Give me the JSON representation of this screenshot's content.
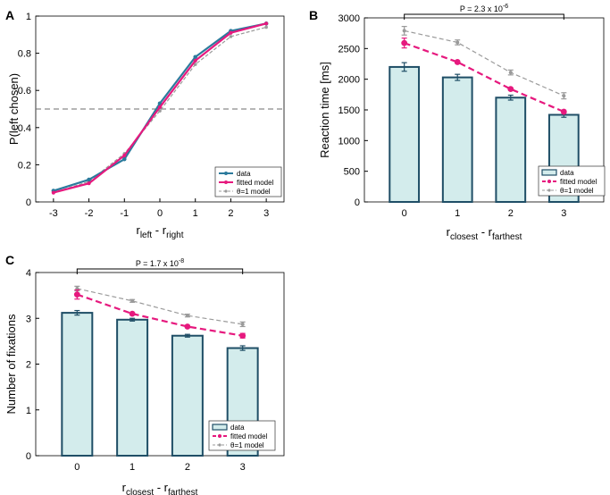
{
  "colors": {
    "data_line": "#2b7a9c",
    "fitted": "#e6197e",
    "theta1": "#9a9a9a",
    "bar_fill": "#d3ecec",
    "bar_edge": "#1f4e66",
    "dashed_ref": "#6e6e6e"
  },
  "chart_data": [
    {
      "panel": "A",
      "type": "line",
      "xlabel_main": "r",
      "xlabel_sub1": "left",
      "xlabel_mid": " - r",
      "xlabel_sub2": "right",
      "ylabel": "P(left chosen)",
      "x": [
        -3,
        -2,
        -1,
        0,
        1,
        2,
        3
      ],
      "xlim": [
        -3.5,
        3.5
      ],
      "ylim": [
        0,
        1
      ],
      "xticks": [
        "-3",
        "-2",
        "-1",
        "0",
        "1",
        "2",
        "3"
      ],
      "yticks": [
        "0",
        "0.2",
        "0.4",
        "0.6",
        "0.8",
        "1"
      ],
      "reference_line_y": 0.5,
      "legend": [
        "data",
        "fitted model",
        "θ=1 model"
      ],
      "series": [
        {
          "name": "data",
          "values": [
            0.06,
            0.12,
            0.23,
            0.53,
            0.78,
            0.92,
            0.96
          ]
        },
        {
          "name": "fitted model",
          "values": [
            0.05,
            0.1,
            0.25,
            0.51,
            0.76,
            0.91,
            0.96
          ]
        },
        {
          "name": "θ=1 model",
          "values": [
            0.05,
            0.11,
            0.26,
            0.49,
            0.74,
            0.89,
            0.94
          ]
        }
      ]
    },
    {
      "panel": "B",
      "type": "bar",
      "xlabel_main": "r",
      "xlabel_sub1": "closest",
      "xlabel_mid": " - r",
      "xlabel_sub2": "farthest",
      "ylabel": "Reaction time [ms]",
      "categories": [
        "0",
        "1",
        "2",
        "3"
      ],
      "ylim": [
        0,
        3000
      ],
      "yticks": [
        "0",
        "500",
        "1000",
        "1500",
        "2000",
        "2500",
        "3000"
      ],
      "significance_base": "P = 2.3 x 10",
      "significance_exp": "-6",
      "legend": [
        "data",
        "fitted model",
        "θ=1 model"
      ],
      "series": [
        {
          "name": "data",
          "values": [
            2200,
            2030,
            1700,
            1420
          ],
          "errors": [
            70,
            50,
            40,
            40
          ]
        },
        {
          "name": "fitted model",
          "values": [
            2590,
            2280,
            1840,
            1470
          ],
          "errors": [
            80,
            0,
            0,
            0
          ]
        },
        {
          "name": "θ=1 model",
          "values": [
            2790,
            2600,
            2110,
            1730
          ],
          "errors": [
            70,
            40,
            40,
            50
          ]
        }
      ]
    },
    {
      "panel": "C",
      "type": "bar",
      "xlabel_main": "r",
      "xlabel_sub1": "closest",
      "xlabel_mid": " - r",
      "xlabel_sub2": "farthest",
      "ylabel": "Number of fixations",
      "categories": [
        "0",
        "1",
        "2",
        "3"
      ],
      "ylim": [
        0,
        4
      ],
      "yticks": [
        "0",
        "1",
        "2",
        "3",
        "4"
      ],
      "significance_base": "P = 1.7 x 10",
      "significance_exp": "-8",
      "legend": [
        "data",
        "fitted model",
        "θ=1 model"
      ],
      "series": [
        {
          "name": "data",
          "values": [
            3.12,
            2.97,
            2.62,
            2.35
          ],
          "errors": [
            0.05,
            0.03,
            0.03,
            0.05
          ]
        },
        {
          "name": "fitted model",
          "values": [
            3.52,
            3.1,
            2.82,
            2.62
          ],
          "errors": [
            0.1,
            0,
            0,
            0.05
          ]
        },
        {
          "name": "θ=1 model",
          "values": [
            3.65,
            3.38,
            3.06,
            2.87
          ],
          "errors": [
            0.05,
            0.03,
            0.03,
            0.05
          ]
        }
      ]
    }
  ]
}
